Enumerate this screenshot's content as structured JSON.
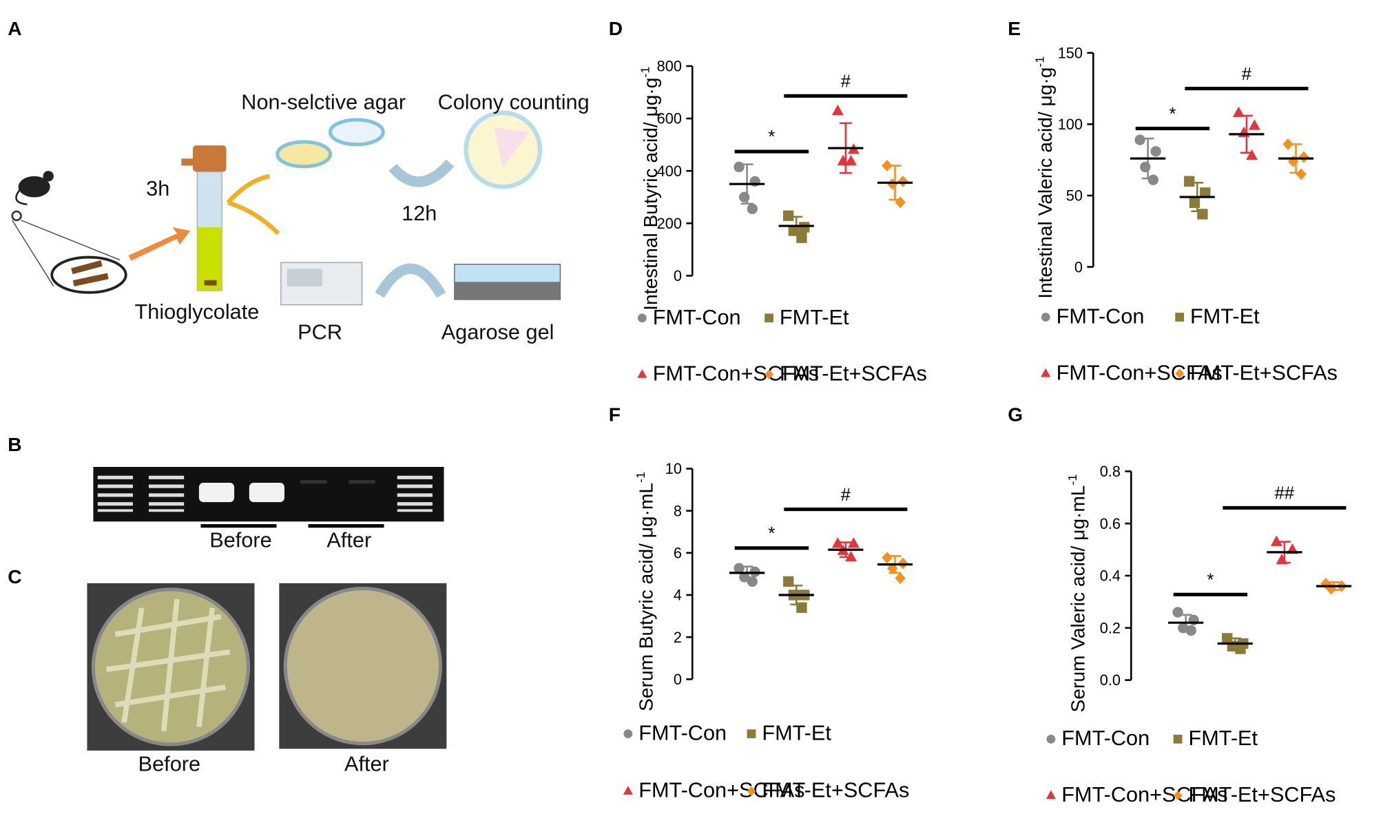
{
  "panel_a": {
    "label": "A",
    "agar": "Non-selctive agar",
    "colony": "Colony counting",
    "time_1": "3h",
    "time_2": "12h",
    "medium": "Thioglycolate",
    "pcr": "PCR",
    "gel": "Agarose gel"
  },
  "panel_b": {
    "label": "B",
    "before": "Before",
    "after": "After"
  },
  "panel_c": {
    "label": "C",
    "before": "Before",
    "after": "After"
  },
  "chart_data": [
    {
      "type": "scatter",
      "panel": "D",
      "y_label": "Intestinal Butyric acid/ μg·g",
      "y_label_sup": "-1",
      "ylim": [
        0,
        800
      ],
      "yticks": [
        0,
        200,
        400,
        600,
        800
      ],
      "series": [
        {
          "name": "FMT-Con",
          "color": "#888888",
          "marker": "circle",
          "values": [
            415,
            360,
            300,
            255
          ],
          "mean": 350,
          "sd": 75
        },
        {
          "name": "FMT-Et",
          "color": "#8b7b37",
          "marker": "square",
          "values": [
            229,
            185,
            172,
            145
          ],
          "mean": 190,
          "sd": 35
        },
        {
          "name": "FMT-Con+SCFAs",
          "color": "#e8333a",
          "marker": "triangle",
          "values": [
            629,
            481,
            437,
            437
          ],
          "mean": 487,
          "sd": 95
        },
        {
          "name": "FMT-Et+SCFAs",
          "color": "#f5901e",
          "marker": "diamond",
          "values": [
            420,
            360,
            350,
            280
          ],
          "mean": 355,
          "sd": 65
        }
      ],
      "annotations": [
        {
          "text": "*",
          "from": 0,
          "to": 1,
          "y": 474
        },
        {
          "text": "#",
          "from": 1,
          "to": 3,
          "y": 686
        }
      ]
    },
    {
      "type": "scatter",
      "panel": "E",
      "y_label": "Intestinal  Valeric acid/ μg·g",
      "y_label_sup": "-1",
      "ylim": [
        0,
        150
      ],
      "yticks": [
        0,
        50,
        100,
        150
      ],
      "series": [
        {
          "name": "FMT-Con",
          "color": "#888888",
          "marker": "circle",
          "values": [
            89,
            81,
            70,
            61
          ],
          "mean": 76,
          "sd": 14
        },
        {
          "name": "FMT-Et",
          "color": "#8b7b37",
          "marker": "square",
          "values": [
            60,
            52,
            45,
            37
          ],
          "mean": 49,
          "sd": 10
        },
        {
          "name": "FMT-Con+SCFAs",
          "color": "#e8333a",
          "marker": "triangle",
          "values": [
            108,
            99,
            94,
            78
          ],
          "mean": 93,
          "sd": 13
        },
        {
          "name": "FMT-Et+SCFAs",
          "color": "#f5901e",
          "marker": "diamond",
          "values": [
            86,
            77,
            74,
            65
          ],
          "mean": 76,
          "sd": 10
        }
      ],
      "annotations": [
        {
          "text": "*",
          "from": 0,
          "to": 1,
          "y": 97
        },
        {
          "text": "#",
          "from": 1,
          "to": 3,
          "y": 125
        }
      ]
    },
    {
      "type": "scatter",
      "panel": "F",
      "y_label": "Serum Butyric acid/ μg·mL",
      "y_label_sup": "-1",
      "ylim": [
        0,
        10
      ],
      "yticks": [
        0,
        2,
        4,
        6,
        8,
        10
      ],
      "series": [
        {
          "name": "FMT-Con",
          "color": "#888888",
          "marker": "circle",
          "values": [
            5.27,
            5.1,
            4.85,
            4.64
          ],
          "mean": 5.05,
          "sd": 0.3
        },
        {
          "name": "FMT-Et",
          "color": "#8b7b37",
          "marker": "square",
          "values": [
            4.64,
            4.0,
            4.0,
            3.4
          ],
          "mean": 4.0,
          "sd": 0.45
        },
        {
          "name": "FMT-Con+SCFAs",
          "color": "#e8333a",
          "marker": "triangle",
          "values": [
            6.44,
            6.44,
            6.1,
            5.8
          ],
          "mean": 6.15,
          "sd": 0.35
        },
        {
          "name": "FMT-Et+SCFAs",
          "color": "#f5901e",
          "marker": "diamond",
          "values": [
            5.77,
            5.5,
            5.27,
            4.8
          ],
          "mean": 5.45,
          "sd": 0.4
        }
      ],
      "annotations": [
        {
          "text": "*",
          "from": 0,
          "to": 1,
          "y": 6.23
        },
        {
          "text": "#",
          "from": 1,
          "to": 3,
          "y": 8.07
        }
      ]
    },
    {
      "type": "scatter",
      "panel": "G",
      "y_label": "Serum Valeric acid/ μg·mL",
      "y_label_sup": "-1",
      "ylim": [
        0,
        0.8
      ],
      "yticks": [
        {
          "value": 0,
          "label": "0.0"
        },
        0.2,
        0.4,
        0.6,
        0.8
      ],
      "series": [
        {
          "name": "FMT-Con",
          "color": "#888888",
          "marker": "circle",
          "values": [
            0.26,
            0.23,
            0.2,
            0.19
          ],
          "mean": 0.22,
          "sd": 0.03
        },
        {
          "name": "FMT-Et",
          "color": "#8b7b37",
          "marker": "square",
          "values": [
            0.16,
            0.14,
            0.13,
            0.12
          ],
          "mean": 0.14,
          "sd": 0.02
        },
        {
          "name": "FMT-Con+SCFAs",
          "color": "#e8333a",
          "marker": "triangle",
          "values": [
            0.53,
            0.5,
            0.46
          ],
          "mean": 0.49,
          "sd": 0.04
        },
        {
          "name": "FMT-Et+SCFAs",
          "color": "#f5901e",
          "marker": "diamond",
          "values": [
            0.37,
            0.36,
            0.35
          ],
          "mean": 0.36,
          "sd": 0.015
        }
      ],
      "annotations": [
        {
          "text": "*",
          "from": 0,
          "to": 1,
          "y": 0.328
        },
        {
          "text": "##",
          "from": 1,
          "to": 3,
          "y": 0.66
        }
      ]
    }
  ]
}
